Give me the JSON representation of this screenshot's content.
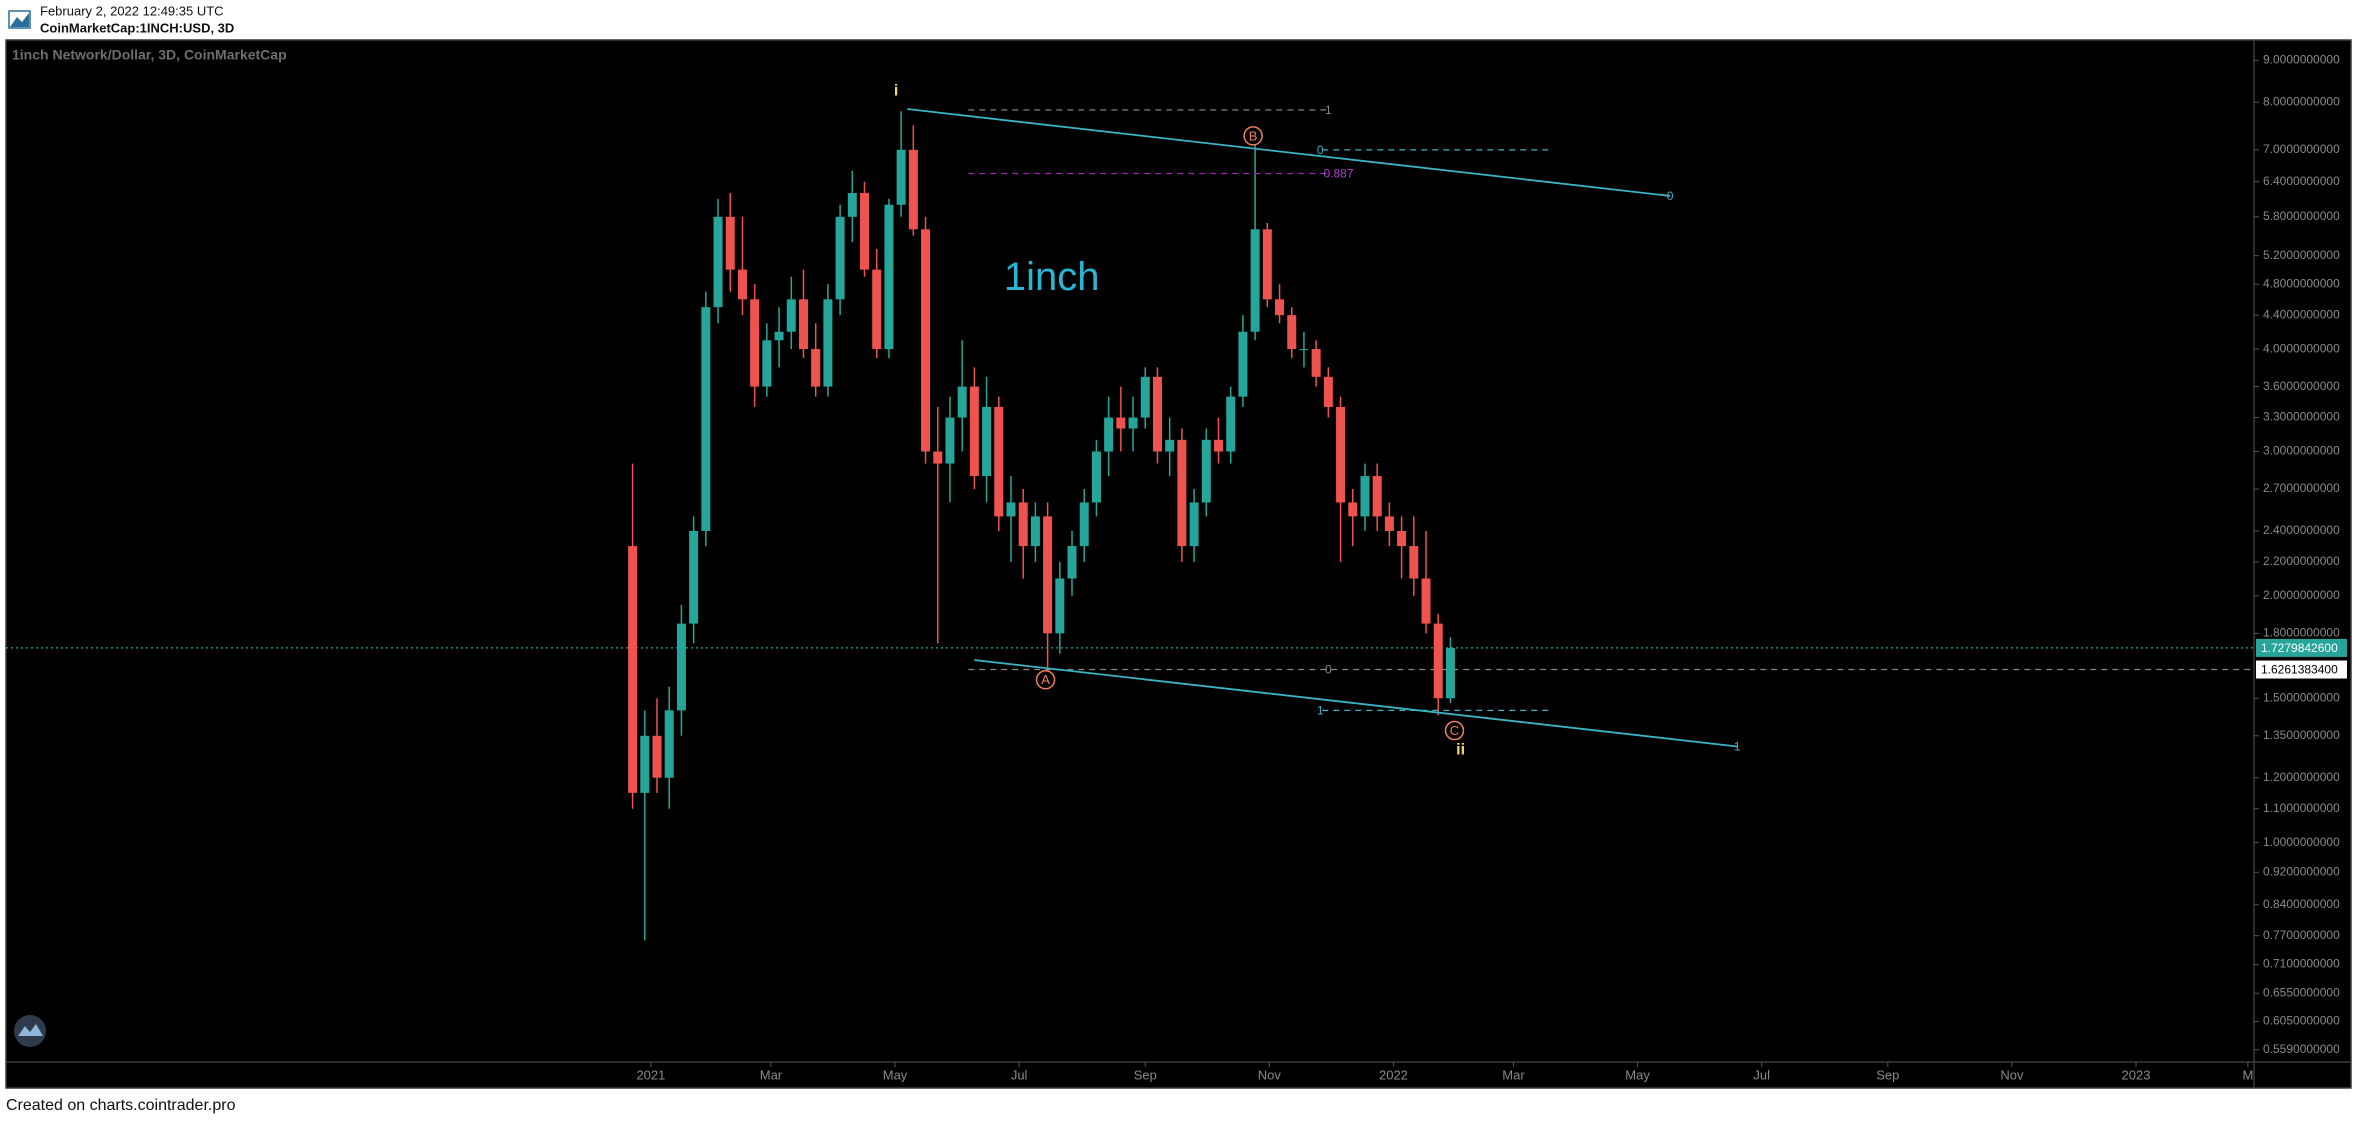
{
  "header": {
    "timestamp": "February 2, 2022 12:49:35 UTC",
    "symbol": "CoinMarketCap:1INCH:USD, 3D"
  },
  "footer": "Created on charts.cointrader.pro",
  "chart_data": {
    "type": "candlestick",
    "title": "1inch Network/Dollar, 3D, CoinMarketCap",
    "log_scale": true,
    "up_color": "#26a69a",
    "down_color": "#ef5350",
    "x": [
      -9,
      -3,
      3,
      9,
      15,
      21,
      27,
      33,
      39,
      45,
      51,
      57,
      63,
      69,
      75,
      81,
      87,
      93,
      99,
      105,
      111,
      117,
      123,
      129,
      135,
      141,
      147,
      153,
      159,
      165,
      171,
      177,
      183,
      189,
      195,
      201,
      207,
      213,
      219,
      225,
      231,
      237,
      243,
      249,
      255,
      261,
      267,
      273,
      279,
      285,
      291,
      297,
      303,
      309,
      315,
      321,
      327,
      333,
      339,
      345,
      351,
      357,
      363,
      369,
      375,
      381,
      387,
      393
    ],
    "open": [
      2.3,
      1.15,
      1.35,
      1.2,
      1.45,
      1.85,
      2.4,
      4.5,
      5.8,
      5.0,
      4.6,
      3.6,
      4.1,
      4.2,
      4.6,
      4.0,
      3.6,
      4.6,
      5.8,
      6.2,
      5.0,
      4.0,
      6.0,
      7.0,
      5.6,
      3.0,
      2.9,
      3.3,
      3.6,
      2.8,
      3.4,
      2.5,
      2.6,
      2.3,
      2.5,
      1.8,
      2.1,
      2.3,
      2.6,
      3.0,
      3.3,
      3.2,
      3.3,
      3.7,
      3.0,
      3.1,
      2.3,
      2.6,
      3.1,
      3.0,
      3.5,
      4.2,
      5.6,
      4.6,
      4.4,
      4.0,
      4.0,
      3.7,
      3.4,
      2.6,
      2.5,
      2.8,
      2.5,
      2.4,
      2.3,
      2.1,
      1.85,
      1.5
    ],
    "high": [
      2.9,
      1.45,
      1.5,
      1.55,
      1.95,
      2.5,
      4.7,
      6.1,
      6.2,
      5.8,
      4.8,
      4.3,
      4.5,
      4.9,
      5.0,
      4.3,
      4.8,
      6.0,
      6.6,
      6.4,
      5.3,
      6.1,
      7.8,
      7.5,
      5.8,
      3.4,
      3.5,
      4.1,
      3.8,
      3.7,
      3.5,
      2.8,
      2.7,
      2.6,
      2.6,
      2.2,
      2.4,
      2.7,
      3.1,
      3.5,
      3.6,
      3.5,
      3.8,
      3.8,
      3.3,
      3.2,
      2.7,
      3.2,
      3.3,
      3.6,
      4.4,
      7.1,
      5.7,
      4.8,
      4.5,
      4.2,
      4.1,
      3.8,
      3.5,
      2.7,
      2.9,
      2.9,
      2.6,
      2.5,
      2.5,
      2.4,
      1.9,
      1.78
    ],
    "low": [
      1.1,
      0.76,
      1.15,
      1.1,
      1.35,
      1.75,
      2.3,
      4.3,
      4.7,
      4.4,
      3.4,
      3.5,
      3.8,
      4.0,
      3.9,
      3.5,
      3.5,
      4.4,
      5.4,
      4.9,
      3.9,
      3.9,
      5.8,
      5.5,
      2.9,
      1.75,
      2.6,
      3.0,
      2.7,
      2.6,
      2.4,
      2.2,
      2.1,
      2.2,
      1.62,
      1.7,
      2.0,
      2.2,
      2.5,
      2.8,
      3.0,
      3.0,
      3.2,
      2.9,
      2.8,
      2.2,
      2.2,
      2.5,
      2.9,
      2.9,
      3.4,
      4.1,
      4.5,
      4.3,
      3.9,
      3.8,
      3.6,
      3.3,
      2.2,
      2.3,
      2.4,
      2.4,
      2.3,
      2.1,
      2.0,
      1.8,
      1.43,
      1.48
    ],
    "close": [
      1.15,
      1.35,
      1.2,
      1.45,
      1.85,
      2.4,
      4.5,
      5.8,
      5.0,
      4.6,
      3.6,
      4.1,
      4.2,
      4.6,
      4.0,
      3.6,
      4.6,
      5.8,
      6.2,
      5.0,
      4.0,
      6.0,
      7.0,
      5.6,
      3.0,
      2.9,
      3.3,
      3.6,
      2.8,
      3.4,
      2.5,
      2.6,
      2.3,
      2.5,
      1.8,
      2.1,
      2.3,
      2.6,
      3.0,
      3.3,
      3.2,
      3.3,
      3.7,
      3.0,
      3.1,
      2.3,
      2.6,
      3.1,
      3.0,
      3.5,
      4.2,
      5.6,
      4.6,
      4.4,
      4.0,
      4.0,
      3.7,
      3.4,
      2.6,
      2.5,
      2.8,
      2.5,
      2.4,
      2.3,
      2.1,
      1.85,
      1.5,
      1.72798426
    ],
    "xlim": [
      -317,
      788
    ],
    "ylim": [
      0.54,
      9.53
    ],
    "xticks": [
      {
        "value": 0,
        "label": "2021"
      },
      {
        "value": 59,
        "label": "Mar"
      },
      {
        "value": 120,
        "label": "May"
      },
      {
        "value": 181,
        "label": "Jul"
      },
      {
        "value": 243,
        "label": "Sep"
      },
      {
        "value": 304,
        "label": "Nov"
      },
      {
        "value": 365,
        "label": "2022"
      },
      {
        "value": 424,
        "label": "Mar"
      },
      {
        "value": 485,
        "label": "May"
      },
      {
        "value": 546,
        "label": "Jul"
      },
      {
        "value": 608,
        "label": "Sep"
      },
      {
        "value": 669,
        "label": "Nov"
      },
      {
        "value": 730,
        "label": "2023"
      },
      {
        "value": 785,
        "label": "M"
      }
    ],
    "yticks": [
      {
        "value": 9,
        "label": "9.0000000000"
      },
      {
        "value": 8,
        "label": "8.0000000000"
      },
      {
        "value": 7,
        "label": "7.0000000000"
      },
      {
        "value": 6.4,
        "label": "6.4000000000"
      },
      {
        "value": 5.8,
        "label": "5.8000000000"
      },
      {
        "value": 5.2,
        "label": "5.2000000000"
      },
      {
        "value": 4.8,
        "label": "4.8000000000"
      },
      {
        "value": 4.4,
        "label": "4.4000000000"
      },
      {
        "value": 4,
        "label": "4.0000000000"
      },
      {
        "value": 3.6,
        "label": "3.6000000000"
      },
      {
        "value": 3.3,
        "label": "3.3000000000"
      },
      {
        "value": 3,
        "label": "3.0000000000"
      },
      {
        "value": 2.7,
        "label": "2.7000000000"
      },
      {
        "value": 2.4,
        "label": "2.4000000000"
      },
      {
        "value": 2.2,
        "label": "2.2000000000"
      },
      {
        "value": 2,
        "label": "2.0000000000"
      },
      {
        "value": 1.8,
        "label": "1.8000000000"
      },
      {
        "value": 1.5,
        "label": "1.5000000000"
      },
      {
        "value": 1.35,
        "label": "1.3500000000"
      },
      {
        "value": 1.2,
        "label": "1.2000000000"
      },
      {
        "value": 1.1,
        "label": "1.1000000000"
      },
      {
        "value": 1,
        "label": "1.0000000000"
      },
      {
        "value": 0.92,
        "label": "0.9200000000"
      },
      {
        "value": 0.84,
        "label": "0.8400000000"
      },
      {
        "value": 0.77,
        "label": "0.7700000000"
      },
      {
        "value": 0.71,
        "label": "0.7100000000"
      },
      {
        "value": 0.655,
        "label": "0.6550000000"
      },
      {
        "value": 0.605,
        "label": "0.6050000000"
      },
      {
        "value": 0.559,
        "label": "0.5590000000"
      }
    ],
    "price_lines": [
      {
        "value": 1.72798426,
        "label": "1.7279842600",
        "color": "#26a69a",
        "text_color": "#ffffff",
        "style": "dotted",
        "from": -317
      },
      {
        "value": 1.62613834,
        "label": "1.6261383400",
        "color": "#ffffff",
        "text_color": "#000000",
        "style": "dashed",
        "from": 156
      }
    ],
    "lines": [
      {
        "x": [
          126,
          501
        ],
        "y": [
          7.85,
          6.15
        ],
        "color": "#3bb3c3",
        "style": "solid"
      },
      {
        "x": [
          159,
          534
        ],
        "y": [
          1.67,
          1.31
        ],
        "color": "#3bb3c3",
        "style": "solid"
      },
      {
        "x": [
          156,
          333
        ],
        "y": [
          7.83,
          7.83
        ],
        "color": "#777777",
        "style": "dashed"
      },
      {
        "x": [
          330,
          441
        ],
        "y": [
          7.0,
          7.0
        ],
        "color": "#3bb3c3",
        "style": "dashed"
      },
      {
        "x": [
          156,
          333
        ],
        "y": [
          6.55,
          6.55
        ],
        "color": "#9c27b0",
        "style": "dashed"
      },
      {
        "x": [
          330,
          441
        ],
        "y": [
          1.45,
          1.45
        ],
        "color": "#3bb3c3",
        "style": "dashed"
      }
    ],
    "annotations": [
      {
        "text": "i",
        "x": 120.5,
        "y": 8.27,
        "color": "#f5d76e",
        "size": 16
      },
      {
        "text": "1inch",
        "x": 197,
        "y": 4.88,
        "color": "#29b6d4",
        "size": 40
      },
      {
        "text": "A",
        "x": 194,
        "y": 1.58,
        "color": "#f08060",
        "size": 13,
        "circle": true
      },
      {
        "text": "B",
        "x": 296,
        "y": 7.28,
        "color": "#f08060",
        "size": 13,
        "circle": true
      },
      {
        "text": "C",
        "x": 395,
        "y": 1.37,
        "color": "#f08060",
        "size": 13,
        "circle": true
      },
      {
        "text": "ii",
        "x": 398,
        "y": 1.3,
        "color": "#f5d76e",
        "size": 16
      },
      {
        "text": "1",
        "x": 333,
        "y": 7.83,
        "color": "#888888",
        "size": 12
      },
      {
        "text": "0",
        "x": 329,
        "y": 7.0,
        "color": "#3bb3c3",
        "size": 12
      },
      {
        "text": "0.887",
        "x": 338,
        "y": 6.55,
        "color": "#b040d0",
        "size": 12
      },
      {
        "text": "0",
        "x": 333,
        "y": 1.626,
        "color": "#888888",
        "size": 12
      },
      {
        "text": "1",
        "x": 329,
        "y": 1.45,
        "color": "#3bb3c3",
        "size": 12
      },
      {
        "text": "0",
        "x": 501,
        "y": 6.15,
        "color": "#3bb3c3",
        "size": 12
      },
      {
        "text": "1",
        "x": 534,
        "y": 1.31,
        "color": "#3bb3c3",
        "size": 12
      }
    ]
  }
}
